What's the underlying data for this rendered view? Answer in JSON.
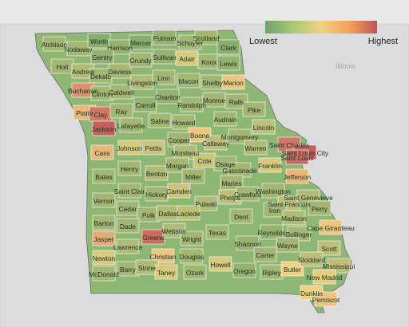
{
  "legend": {
    "low_label": "Lowest",
    "high_label": "Highest"
  },
  "state_labels": {
    "illinois": "Illinois"
  },
  "colors": {
    "low": "#6fa36a",
    "mid": "#f1d283",
    "high": "#c2525b",
    "water": "#eaeaea",
    "neighbor": "#d9d9d9"
  },
  "counties": [
    {
      "name": "Atchison",
      "level": 0.2
    },
    {
      "name": "Nodaway",
      "level": 0.2
    },
    {
      "name": "Worth",
      "level": 0.1
    },
    {
      "name": "Harrison",
      "level": 0.15
    },
    {
      "name": "Mercer",
      "level": 0.1
    },
    {
      "name": "Putnam",
      "level": 0.15
    },
    {
      "name": "Schuyler",
      "level": 0.2
    },
    {
      "name": "Scotland",
      "level": 0.2
    },
    {
      "name": "Clark",
      "level": 0.1
    },
    {
      "name": "Holt",
      "level": 0.2
    },
    {
      "name": "Andrew",
      "level": 0.25
    },
    {
      "name": "Gentry",
      "level": 0.15
    },
    {
      "name": "Dekalb",
      "level": 0.2
    },
    {
      "name": "Daviess",
      "level": 0.2
    },
    {
      "name": "Grundy",
      "level": 0.2
    },
    {
      "name": "Sullivan",
      "level": 0.15
    },
    {
      "name": "Adair",
      "level": 0.4
    },
    {
      "name": "Knox",
      "level": 0.2
    },
    {
      "name": "Lewis",
      "level": 0.15
    },
    {
      "name": "Buchanan",
      "level": 0.75
    },
    {
      "name": "Clinton",
      "level": 0.2
    },
    {
      "name": "Caldwell",
      "level": 0.2
    },
    {
      "name": "Livingston",
      "level": 0.25
    },
    {
      "name": "Linn",
      "level": 0.2
    },
    {
      "name": "Macon",
      "level": 0.2
    },
    {
      "name": "Shelby",
      "level": 0.2
    },
    {
      "name": "Marion",
      "level": 0.55
    },
    {
      "name": "Platte",
      "level": 0.6
    },
    {
      "name": "Clay",
      "level": 0.85
    },
    {
      "name": "Ray",
      "level": 0.2
    },
    {
      "name": "Carroll",
      "level": 0.15
    },
    {
      "name": "Chariton",
      "level": 0.15
    },
    {
      "name": "Randolph",
      "level": 0.2
    },
    {
      "name": "Monroe",
      "level": 0.2
    },
    {
      "name": "Ralls",
      "level": 0.2
    },
    {
      "name": "Pike",
      "level": 0.2
    },
    {
      "name": "Jackson",
      "level": 0.95
    },
    {
      "name": "Lafayette",
      "level": 0.2
    },
    {
      "name": "Saline",
      "level": 0.2
    },
    {
      "name": "Howard",
      "level": 0.2
    },
    {
      "name": "Boone",
      "level": 0.55
    },
    {
      "name": "Audrain",
      "level": 0.2
    },
    {
      "name": "Lincoln",
      "level": 0.3
    },
    {
      "name": "Cass",
      "level": 0.6
    },
    {
      "name": "Johnson",
      "level": 0.4
    },
    {
      "name": "Pettis",
      "level": 0.35
    },
    {
      "name": "Cooper",
      "level": 0.2
    },
    {
      "name": "Moniteau",
      "level": 0.25
    },
    {
      "name": "Callaway",
      "level": 0.3
    },
    {
      "name": "Montgomery",
      "level": 0.2
    },
    {
      "name": "Warren",
      "level": 0.25
    },
    {
      "name": "Saint Charles",
      "level": 0.85
    },
    {
      "name": "Saint Louis City",
      "level": 0.95
    },
    {
      "name": "Saint Louis",
      "level": 0.9
    },
    {
      "name": "Bates",
      "level": 0.2
    },
    {
      "name": "Henry",
      "level": 0.2
    },
    {
      "name": "Benton",
      "level": 0.25
    },
    {
      "name": "Morgan",
      "level": 0.2
    },
    {
      "name": "Cole",
      "level": 0.35
    },
    {
      "name": "Osage",
      "level": 0.2
    },
    {
      "name": "Gasconade",
      "level": 0.2
    },
    {
      "name": "Franklin",
      "level": 0.4
    },
    {
      "name": "Jefferson",
      "level": 0.6
    },
    {
      "name": "Miller",
      "level": 0.2
    },
    {
      "name": "Maries",
      "level": 0.2
    },
    {
      "name": "Vernon",
      "level": 0.2
    },
    {
      "name": "Saint Clair",
      "level": 0.2
    },
    {
      "name": "Hickory",
      "level": 0.2
    },
    {
      "name": "Camden",
      "level": 0.35
    },
    {
      "name": "Pulaski",
      "level": 0.25
    },
    {
      "name": "Phelps",
      "level": 0.3
    },
    {
      "name": "Crawford",
      "level": 0.2
    },
    {
      "name": "Washington",
      "level": 0.2
    },
    {
      "name": "Saint Francois",
      "level": 0.3
    },
    {
      "name": "Saint Genevieve",
      "level": 0.25
    },
    {
      "name": "Perry",
      "level": 0.2
    },
    {
      "name": "Cedar",
      "level": 0.2
    },
    {
      "name": "Polk",
      "level": 0.2
    },
    {
      "name": "Dallas",
      "level": 0.25
    },
    {
      "name": "Laclede",
      "level": 0.3
    },
    {
      "name": "Dent",
      "level": 0.2
    },
    {
      "name": "Iron",
      "level": 0.2
    },
    {
      "name": "Madison",
      "level": 0.25
    },
    {
      "name": "Barton",
      "level": 0.2
    },
    {
      "name": "Dade",
      "level": 0.2
    },
    {
      "name": "Greene",
      "level": 0.9
    },
    {
      "name": "Webster",
      "level": 0.25
    },
    {
      "name": "Wright",
      "level": 0.2
    },
    {
      "name": "Texas",
      "level": 0.2
    },
    {
      "name": "Reynolds",
      "level": 0.15
    },
    {
      "name": "Bollinger",
      "level": 0.2
    },
    {
      "name": "Cape Girardeau",
      "level": 0.55
    },
    {
      "name": "Jasper",
      "level": 0.65
    },
    {
      "name": "Lawrence",
      "level": 0.25
    },
    {
      "name": "Shannon",
      "level": 0.15
    },
    {
      "name": "Wayne",
      "level": 0.2
    },
    {
      "name": "Newton",
      "level": 0.4
    },
    {
      "name": "Christian",
      "level": 0.55
    },
    {
      "name": "Douglas",
      "level": 0.2
    },
    {
      "name": "Carter",
      "level": 0.2
    },
    {
      "name": "Scott",
      "level": 0.3
    },
    {
      "name": "Barry",
      "level": 0.2
    },
    {
      "name": "Stone",
      "level": 0.25
    },
    {
      "name": "Taney",
      "level": 0.4
    },
    {
      "name": "Ozark",
      "level": 0.2
    },
    {
      "name": "Howell",
      "level": 0.4
    },
    {
      "name": "Oregon",
      "level": 0.15
    },
    {
      "name": "Ripley",
      "level": 0.2
    },
    {
      "name": "Butler",
      "level": 0.5
    },
    {
      "name": "Stoddard",
      "level": 0.3
    },
    {
      "name": "Mississippi",
      "level": 0.3
    },
    {
      "name": "New Madrid",
      "level": 0.45
    },
    {
      "name": "McDonald",
      "level": 0.2
    },
    {
      "name": "Dunklin",
      "level": 0.5
    },
    {
      "name": "Pemiscot",
      "level": 0.55
    }
  ]
}
